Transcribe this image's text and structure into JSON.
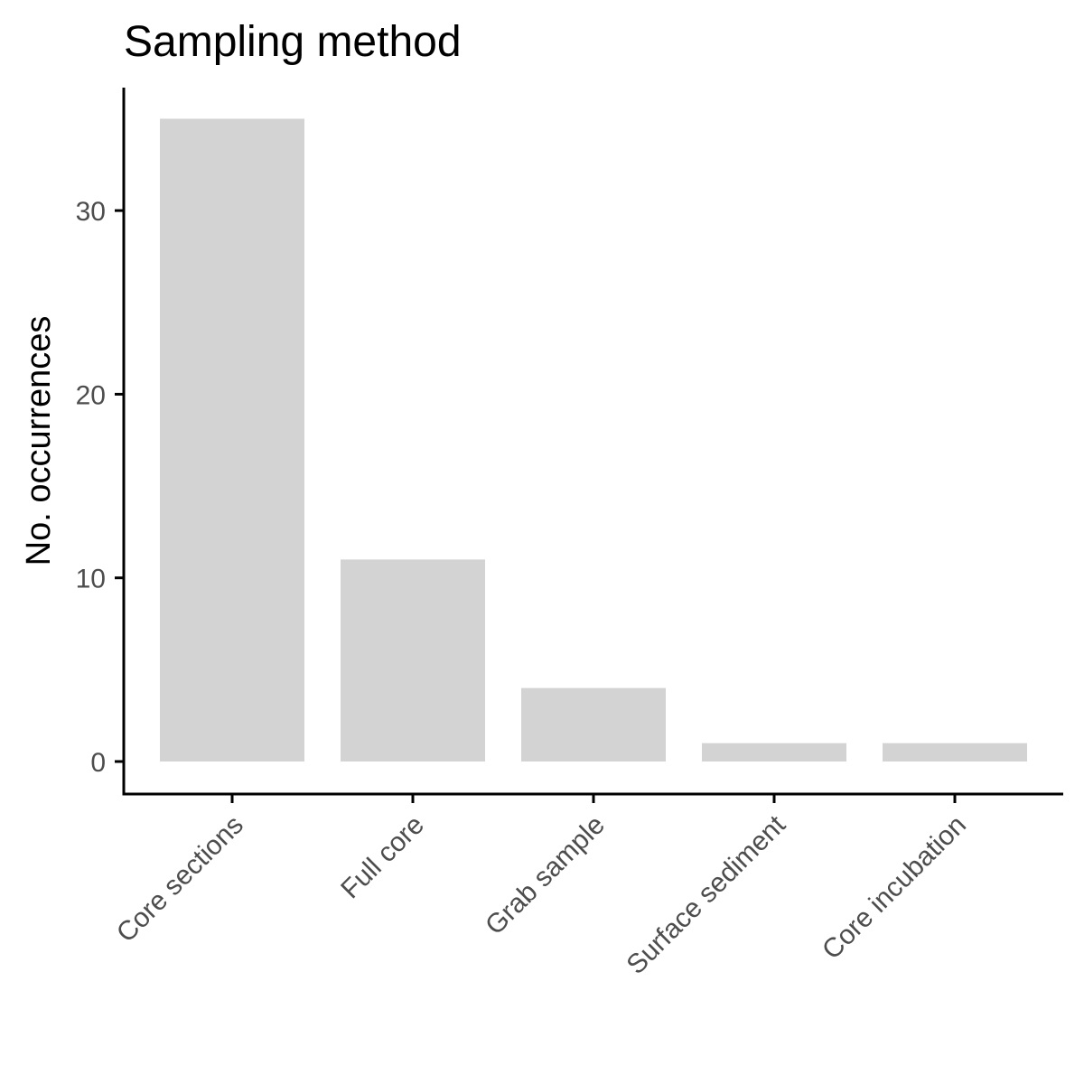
{
  "chart_data": {
    "type": "bar",
    "title": "Sampling method",
    "xlabel": "",
    "ylabel": "No. occurrences",
    "categories": [
      "Core sections",
      "Full core",
      "Grab sample",
      "Surface sediment",
      "Core incubation"
    ],
    "values": [
      35,
      11,
      4,
      1,
      1
    ],
    "ylim": [
      0,
      36.75
    ],
    "yticks": [
      0,
      10,
      20,
      30
    ],
    "ytick_labels": [
      "0",
      "10",
      "20",
      "30"
    ],
    "grid": false,
    "legend": "none",
    "colors": {
      "bar": "#d3d3d3",
      "axis": "#000000",
      "tick_label": "#4d4d4d",
      "text": "#000000"
    }
  }
}
